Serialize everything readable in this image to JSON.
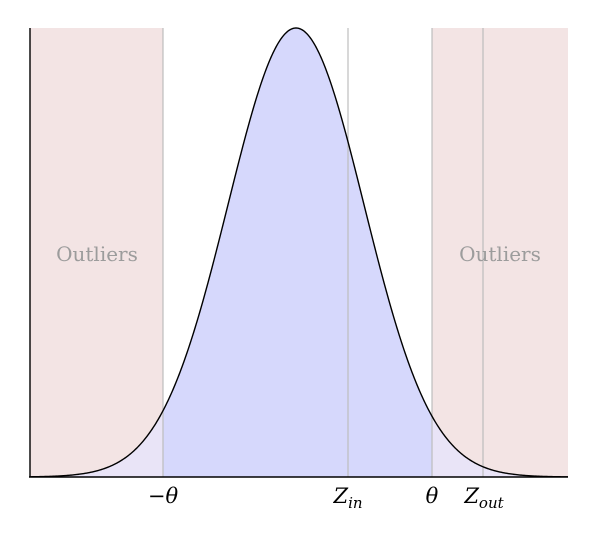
{
  "colors": {
    "outlier_region": "#f3e4e4",
    "curve_fill": "#d6d8fc",
    "curve_fill_tails": "#e9e4f7",
    "curve_stroke": "#000000",
    "guide_lines": "#bdbdbd",
    "axis": "#000000",
    "label_text": "#9c9c9c"
  },
  "regions": {
    "left_label": "Outliers",
    "right_label": "Outliers"
  },
  "markers": {
    "neg_theta": "−θ",
    "z_in_base": "Z",
    "z_in_sub": "in",
    "theta": "θ",
    "z_out_base": "Z",
    "z_out_sub": "out"
  }
}
